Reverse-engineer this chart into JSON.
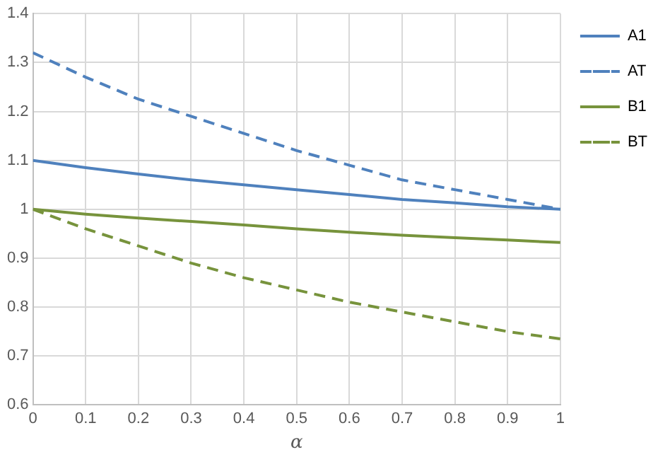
{
  "chart_data": {
    "type": "line",
    "xlabel": "α",
    "x": [
      0,
      0.1,
      0.2,
      0.3,
      0.4,
      0.5,
      0.6,
      0.7,
      0.8,
      0.9,
      1
    ],
    "series": [
      {
        "name": "A1",
        "color": "#4f81bd",
        "line_style": "solid",
        "values": [
          1.1,
          1.085,
          1.072,
          1.06,
          1.05,
          1.04,
          1.03,
          1.02,
          1.013,
          1.005,
          1.0
        ]
      },
      {
        "name": "AT",
        "color": "#4f81bd",
        "line_style": "dashed",
        "values": [
          1.32,
          1.27,
          1.225,
          1.19,
          1.155,
          1.12,
          1.09,
          1.06,
          1.04,
          1.02,
          1.0
        ]
      },
      {
        "name": "B1",
        "color": "#77933c",
        "line_style": "solid",
        "values": [
          1.0,
          0.99,
          0.982,
          0.975,
          0.968,
          0.96,
          0.953,
          0.947,
          0.942,
          0.937,
          0.932
        ]
      },
      {
        "name": "BT",
        "color": "#77933c",
        "line_style": "dashed",
        "values": [
          1.0,
          0.96,
          0.925,
          0.89,
          0.86,
          0.835,
          0.81,
          0.79,
          0.77,
          0.75,
          0.735
        ]
      }
    ],
    "xlim": [
      0,
      1
    ],
    "xticks": [
      0,
      0.1,
      0.2,
      0.3,
      0.4,
      0.5,
      0.6,
      0.7,
      0.8,
      0.9,
      1
    ],
    "ylim": [
      0.6,
      1.4
    ],
    "yticks": [
      0.6,
      0.7,
      0.8,
      0.9,
      1,
      1.1,
      1.2,
      1.3,
      1.4
    ],
    "grid": true,
    "legend": "top right",
    "marker": "none"
  }
}
